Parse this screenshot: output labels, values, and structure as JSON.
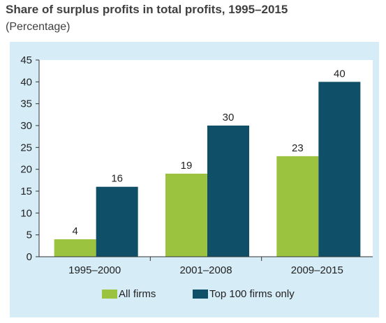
{
  "header": {
    "title": "Share of surplus profits in total profits, 1995–2015",
    "subtitle": "(Percentage)"
  },
  "chart_data": {
    "type": "bar",
    "categories": [
      "1995–2000",
      "2001–2008",
      "2009–2015"
    ],
    "series": [
      {
        "name": "All firms",
        "values": [
          4,
          19,
          23
        ],
        "color": "#9bc33f"
      },
      {
        "name": "Top 100 firms only",
        "values": [
          16,
          30,
          40
        ],
        "color": "#0f5068"
      }
    ],
    "ylim": [
      0,
      45
    ],
    "yticks": [
      0,
      5,
      10,
      15,
      20,
      25,
      30,
      35,
      40,
      45
    ],
    "grid": false,
    "legend_position": "bottom",
    "panel_color": "#d6ecf7",
    "plot_background": "#ffffff"
  }
}
